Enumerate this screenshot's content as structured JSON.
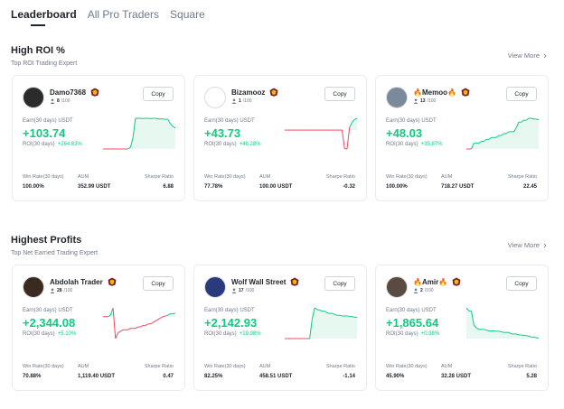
{
  "tabs": [
    "Leaderboard",
    "All Pro Traders",
    "Square"
  ],
  "sections": [
    {
      "title": "High ROI %",
      "subtitle": "Top ROI Trading Expert",
      "view_more": "View More",
      "cards": [
        {
          "name": "Damo7368",
          "followers": "8",
          "followers_max": "/100",
          "copy": "Copy",
          "earn_label": "Earn(30 days) USDT",
          "earn": "+103.74",
          "roi_label": "ROI(30 days)",
          "roi": "+264.63%",
          "win_rate_label": "Win Rate(30 days)",
          "win_rate": "100.00%",
          "aum_label": "AUM",
          "aum": "352.99 USDT",
          "sharpe_label": "Sharpe Ratio",
          "sharpe": "6.88",
          "avatar_color": "#2b2b2b",
          "spark": [
            0,
            0,
            0,
            0,
            0,
            0,
            0,
            0,
            0,
            0,
            0,
            0.05,
            0.35,
            0.95,
            0.95,
            0.95,
            0.94,
            0.95,
            0.95,
            0.94,
            0.95,
            0.95,
            0.93,
            0.93,
            0.93,
            0.92,
            0.92,
            0.78,
            0.7,
            0.65
          ]
        },
        {
          "name": "Bizamooz",
          "followers": "1",
          "followers_max": "/100",
          "copy": "Copy",
          "earn_label": "Earn(30 days) USDT",
          "earn": "+43.73",
          "roi_label": "ROI(30 days)",
          "roi": "+48.28%",
          "win_rate_label": "Win Rate(30 days)",
          "win_rate": "77.78%",
          "aum_label": "AUM",
          "aum": "100.00 USDT",
          "sharpe_label": "Sharpe Ratio",
          "sharpe": "-0.32",
          "avatar_color": "#ffffff",
          "spark": [
            0,
            0,
            0,
            0,
            0,
            0,
            0,
            0,
            0,
            0,
            0,
            0,
            0,
            0,
            0,
            0,
            0,
            0,
            0,
            0,
            0,
            0,
            0,
            0,
            -0.7,
            -0.72,
            0.1,
            0.3,
            0.4,
            0.45
          ]
        },
        {
          "name": "🔥Memoo🔥",
          "followers": "13",
          "followers_max": "/100",
          "copy": "Copy",
          "earn_label": "Earn(30 days) USDT",
          "earn": "+48.03",
          "roi_label": "ROI(30 days)",
          "roi": "+35.87%",
          "win_rate_label": "Win Rate(30 days)",
          "win_rate": "100.00%",
          "aum_label": "AUM",
          "aum": "718.27 USDT",
          "sharpe_label": "Sharpe Ratio",
          "sharpe": "22.45",
          "avatar_color": "#7a8a9a",
          "spark": [
            0,
            0,
            0,
            0.15,
            0.15,
            0.15,
            0.2,
            0.2,
            0.25,
            0.25,
            0.3,
            0.3,
            0.3,
            0.35,
            0.35,
            0.4,
            0.4,
            0.45,
            0.45,
            0.45,
            0.55,
            0.7,
            0.7,
            0.75,
            0.75,
            0.8,
            0.8,
            0.78,
            0.78,
            0.76
          ]
        }
      ]
    },
    {
      "title": "Highest Profits",
      "subtitle": "Top Net Earned Trading Expert",
      "view_more": "View More",
      "cards": [
        {
          "name": "Abdolah Trader",
          "followers": "28",
          "followers_max": "/100",
          "copy": "Copy",
          "earn_label": "Earn(30 days) USDT",
          "earn": "+2,344.08",
          "roi_label": "ROI(30 days)",
          "roi": "+5.10%",
          "win_rate_label": "Win Rate(30 days)",
          "win_rate": "70.88%",
          "aum_label": "AUM",
          "aum": "1,119.40 USDT",
          "sharpe_label": "Sharpe Ratio",
          "sharpe": "0.47",
          "avatar_color": "#3a2a20",
          "spark": [
            0,
            0,
            0,
            0.05,
            0.3,
            -0.75,
            -0.55,
            -0.5,
            -0.45,
            -0.45,
            -0.45,
            -0.4,
            -0.4,
            -0.4,
            -0.35,
            -0.35,
            -0.3,
            -0.3,
            -0.25,
            -0.25,
            -0.2,
            -0.15,
            -0.1,
            -0.05,
            0,
            0.02,
            0.05,
            0.1,
            0.1,
            0.12
          ]
        },
        {
          "name": "Wolf Wall Street",
          "followers": "17",
          "followers_max": "/100",
          "copy": "Copy",
          "earn_label": "Earn(30 days) USDT",
          "earn": "+2,142.93",
          "roi_label": "ROI(30 days)",
          "roi": "+19.98%",
          "win_rate_label": "Win Rate(30 days)",
          "win_rate": "82.25%",
          "aum_label": "AUM",
          "aum": "458.51 USDT",
          "sharpe_label": "Sharpe Ratio",
          "sharpe": "-1.14",
          "avatar_color": "#2a3a7a",
          "spark": [
            0,
            0,
            0,
            0,
            0,
            0,
            0,
            0,
            0,
            0,
            0,
            0.6,
            0.95,
            0.9,
            0.88,
            0.85,
            0.85,
            0.8,
            0.78,
            0.78,
            0.75,
            0.72,
            0.72,
            0.7,
            0.7,
            0.7,
            0.68,
            0.68,
            0.66,
            0.66
          ]
        },
        {
          "name": "🔥Amir🔥",
          "followers": "2",
          "followers_max": "/100",
          "copy": "Copy",
          "earn_label": "Earn(30 days) USDT",
          "earn": "+1,865.64",
          "roi_label": "ROI(30 days)",
          "roi": "+0.98%",
          "win_rate_label": "Win Rate(30 days)",
          "win_rate": "45.90%",
          "aum_label": "AUM",
          "aum": "32.28 USDT",
          "sharpe_label": "Sharpe Ratio",
          "sharpe": "5.28",
          "avatar_color": "#5a4a40",
          "spark": [
            1,
            0.9,
            0.9,
            0.45,
            0.35,
            0.3,
            0.3,
            0.3,
            0.28,
            0.25,
            0.25,
            0.25,
            0.24,
            0.24,
            0.22,
            0.2,
            0.2,
            0.2,
            0.15,
            0.15,
            0.15,
            0.12,
            0.12,
            0.1,
            0.1,
            0.08,
            0.05,
            0.05,
            0.03,
            0.02
          ]
        }
      ]
    }
  ],
  "colors": {
    "up": "#0ecb81",
    "down": "#f6465d",
    "fill": "#e6f8f0"
  }
}
